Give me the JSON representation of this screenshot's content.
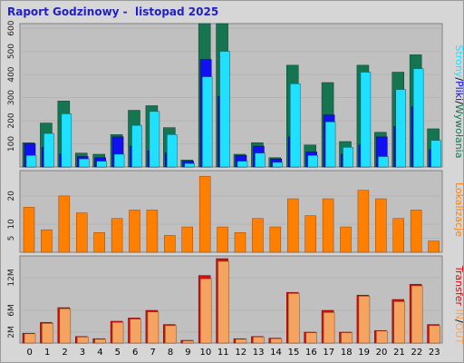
{
  "title": "Raport Godzinowy -  listopad 2025",
  "colors": {
    "pages": "#157550",
    "files": "#1010f0",
    "visits": "#20e0ff",
    "sites": "#ff8000",
    "kbytes": "#d01010",
    "kbytes_fill": "#f4a460",
    "plot_bg": "#c0c0c0",
    "frame_bg": "#d6d6d6"
  },
  "legend_top": {
    "pages_label": "Strony",
    "files_label": "Pliki",
    "visits_label": "Wywołania",
    "sep": "/"
  },
  "legend_mid": {
    "label": "Lokalizacje"
  },
  "legend_bot": {
    "transfer_label": "Transfer",
    "in_label": "IN",
    "out_label": "OUT",
    "sep": "/"
  },
  "chart_data": [
    {
      "type": "bar",
      "title": "Raport Godzinowy -  listopad 2025",
      "categories": [
        "0",
        "1",
        "2",
        "3",
        "4",
        "5",
        "6",
        "7",
        "8",
        "9",
        "10",
        "11",
        "12",
        "13",
        "14",
        "15",
        "16",
        "17",
        "18",
        "19",
        "20",
        "21",
        "22",
        "23"
      ],
      "yticks": [
        "100",
        "200",
        "300",
        "400",
        "500",
        "600"
      ],
      "ylim": [
        0,
        620
      ],
      "series": [
        {
          "name": "Wywołania",
          "values": [
            105,
            190,
            285,
            60,
            55,
            140,
            245,
            265,
            170,
            30,
            620,
            620,
            55,
            105,
            40,
            440,
            95,
            365,
            110,
            440,
            150,
            410,
            485,
            165
          ]
        },
        {
          "name": "Pliki",
          "values": [
            100,
            85,
            55,
            45,
            40,
            130,
            90,
            70,
            60,
            25,
            465,
            305,
            50,
            90,
            35,
            130,
            65,
            225,
            55,
            95,
            130,
            175,
            260,
            75
          ]
        },
        {
          "name": "Strony",
          "values": [
            50,
            145,
            230,
            35,
            25,
            55,
            180,
            240,
            140,
            15,
            390,
            500,
            25,
            60,
            20,
            360,
            50,
            195,
            85,
            410,
            45,
            335,
            425,
            115
          ]
        }
      ]
    },
    {
      "type": "bar",
      "categories": [
        "0",
        "1",
        "2",
        "3",
        "4",
        "5",
        "6",
        "7",
        "8",
        "9",
        "10",
        "11",
        "12",
        "13",
        "14",
        "15",
        "16",
        "17",
        "18",
        "19",
        "20",
        "21",
        "22",
        "23"
      ],
      "yticks": [
        "5",
        "10",
        "20"
      ],
      "ylim": [
        0,
        29
      ],
      "series": [
        {
          "name": "Lokalizacje",
          "values": [
            16,
            8,
            20,
            14,
            7,
            12,
            15,
            15,
            6,
            9,
            27,
            9,
            7,
            12,
            9,
            19,
            13,
            19,
            9,
            22,
            19,
            12,
            15,
            4
          ]
        }
      ]
    },
    {
      "type": "bar",
      "categories": [
        "0",
        "1",
        "2",
        "3",
        "4",
        "5",
        "6",
        "7",
        "8",
        "9",
        "10",
        "11",
        "12",
        "13",
        "14",
        "15",
        "16",
        "17",
        "18",
        "19",
        "20",
        "21",
        "22",
        "23"
      ],
      "yticks": [
        "2M",
        "6M",
        "12M"
      ],
      "ylim": [
        0,
        16
      ],
      "series": [
        {
          "name": "IN",
          "values": [
            1.8,
            3.8,
            6.5,
            1.2,
            0.8,
            4.0,
            4.6,
            6.0,
            3.4,
            0.5,
            12.4,
            15.5,
            0.8,
            1.2,
            0.9,
            9.3,
            2.0,
            6.0,
            2.0,
            8.8,
            2.3,
            8.0,
            10.8,
            3.4
          ]
        },
        {
          "name": "OUT",
          "values": [
            1.7,
            3.6,
            6.3,
            1.1,
            0.7,
            3.8,
            4.4,
            5.7,
            3.2,
            0.4,
            11.8,
            15.0,
            0.7,
            1.1,
            0.8,
            9.1,
            1.9,
            5.6,
            1.9,
            8.6,
            2.2,
            7.6,
            10.5,
            3.2
          ]
        }
      ]
    }
  ]
}
